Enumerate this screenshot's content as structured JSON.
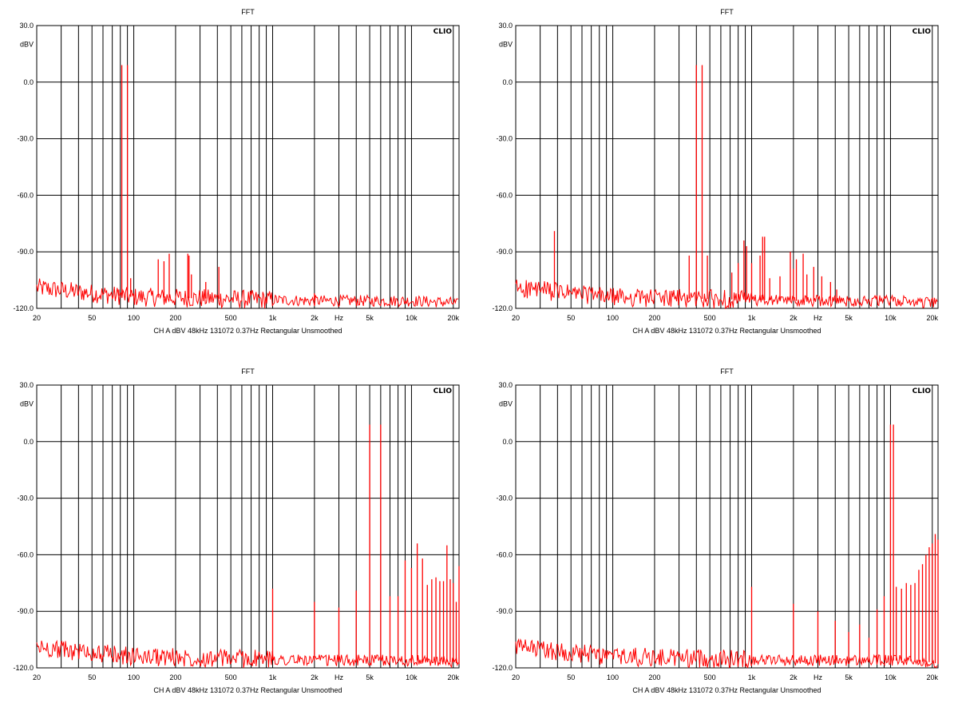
{
  "chart_data": [
    {
      "type": "line",
      "title": "FFT",
      "brand": "CLIO",
      "yunit": "dBV",
      "ylim": [
        -120,
        30
      ],
      "yticks": [
        "30.0",
        "0.0",
        "-30.0",
        "-60.0",
        "-90.0",
        "-120.0"
      ],
      "x_scale": "log",
      "xlim": [
        20,
        22000
      ],
      "xticks": [
        "20",
        "50",
        "100",
        "200",
        "500",
        "1k",
        "2k",
        "Hz",
        "5k",
        "10k",
        "20k"
      ],
      "footer": "CH A   dBV   48kHz   131072   0.37Hz   Rectangular   Unsmoothed",
      "grid": true,
      "series": [
        {
          "color": "#ff0000"
        }
      ],
      "noise": [
        [
          20,
          -109
        ],
        [
          50,
          -112
        ],
        [
          100,
          -114
        ],
        [
          500,
          -115
        ],
        [
          2000,
          -116
        ],
        [
          10000,
          -116
        ],
        [
          20000,
          -117
        ],
        [
          22000,
          -118
        ]
      ],
      "peaks": [
        [
          82,
          9
        ],
        [
          90,
          9
        ],
        [
          78,
          -110
        ],
        [
          95,
          -104
        ],
        [
          150,
          -94
        ],
        [
          165,
          -95
        ],
        [
          180,
          -91
        ],
        [
          245,
          -91
        ],
        [
          250,
          -92
        ],
        [
          260,
          -102
        ],
        [
          330,
          -106
        ],
        [
          410,
          -98
        ],
        [
          2000,
          -112
        ]
      ]
    },
    {
      "type": "line",
      "title": "FFT",
      "brand": "CLIO",
      "yunit": "dBV",
      "ylim": [
        -120,
        30
      ],
      "yticks": [
        "30.0",
        "0.0",
        "-30.0",
        "-60.0",
        "-90.0",
        "-120.0"
      ],
      "x_scale": "log",
      "xlim": [
        20,
        22000
      ],
      "xticks": [
        "20",
        "50",
        "100",
        "200",
        "500",
        "1k",
        "2k",
        "Hz",
        "5k",
        "10k",
        "20k"
      ],
      "footer": "CH A   dBV   48kHz   131072   0.37Hz   Rectangular   Unsmoothed",
      "grid": true,
      "series": [
        {
          "color": "#ff0000"
        }
      ],
      "noise": [
        [
          20,
          -109
        ],
        [
          50,
          -112
        ],
        [
          100,
          -114
        ],
        [
          500,
          -115
        ],
        [
          2000,
          -116
        ],
        [
          10000,
          -116
        ],
        [
          20000,
          -117
        ],
        [
          22000,
          -118
        ]
      ],
      "peaks": [
        [
          38,
          -79
        ],
        [
          355,
          -92
        ],
        [
          400,
          9
        ],
        [
          440,
          9
        ],
        [
          480,
          -92
        ],
        [
          720,
          -101
        ],
        [
          800,
          -96
        ],
        [
          880,
          -84
        ],
        [
          920,
          -87
        ],
        [
          1000,
          -96
        ],
        [
          1150,
          -92
        ],
        [
          1200,
          -82
        ],
        [
          1240,
          -82
        ],
        [
          1350,
          -104
        ],
        [
          1600,
          -103
        ],
        [
          1900,
          -90
        ],
        [
          2000,
          -99
        ],
        [
          2100,
          -94
        ],
        [
          2350,
          -91
        ],
        [
          2500,
          -102
        ],
        [
          2800,
          -98
        ],
        [
          3200,
          -103
        ],
        [
          3700,
          -106
        ],
        [
          4100,
          -110
        ]
      ]
    },
    {
      "type": "line",
      "title": "FFT",
      "brand": "CLIO",
      "yunit": "dBV",
      "ylim": [
        -120,
        30
      ],
      "yticks": [
        "30.0",
        "0.0",
        "-30.0",
        "-60.0",
        "-90.0",
        "-120.0"
      ],
      "x_scale": "log",
      "xlim": [
        20,
        22000
      ],
      "xticks": [
        "20",
        "50",
        "100",
        "200",
        "500",
        "1k",
        "2k",
        "Hz",
        "5k",
        "10k",
        "20k"
      ],
      "footer": "CH A   dBV   48kHz   131072   0.37Hz   Rectangular   Unsmoothed",
      "grid": true,
      "series": [
        {
          "color": "#ff0000"
        }
      ],
      "noise": [
        [
          20,
          -109
        ],
        [
          50,
          -112
        ],
        [
          100,
          -114
        ],
        [
          500,
          -115
        ],
        [
          2000,
          -116
        ],
        [
          10000,
          -116
        ],
        [
          20000,
          -117
        ],
        [
          22000,
          -118
        ]
      ],
      "peaks": [
        [
          1000,
          -78
        ],
        [
          2000,
          -85
        ],
        [
          3000,
          -88
        ],
        [
          4000,
          -79
        ],
        [
          5000,
          9
        ],
        [
          6000,
          9
        ],
        [
          7000,
          -82
        ],
        [
          8000,
          -82
        ],
        [
          9000,
          -63
        ],
        [
          10000,
          -67
        ],
        [
          11000,
          -54
        ],
        [
          12000,
          -62
        ],
        [
          13000,
          -76
        ],
        [
          14000,
          -73
        ],
        [
          15000,
          -72
        ],
        [
          16000,
          -74
        ],
        [
          17000,
          -74
        ],
        [
          18000,
          -55
        ],
        [
          19000,
          -73
        ],
        [
          20000,
          -75
        ],
        [
          21000,
          -85
        ],
        [
          22000,
          -66
        ]
      ]
    },
    {
      "type": "line",
      "title": "FFT",
      "brand": "CLIO",
      "yunit": "dBV",
      "ylim": [
        -120,
        30
      ],
      "yticks": [
        "30.0",
        "0.0",
        "-30.0",
        "-60.0",
        "-90.0",
        "-120.0"
      ],
      "x_scale": "log",
      "xlim": [
        20,
        22000
      ],
      "xticks": [
        "20",
        "50",
        "100",
        "200",
        "500",
        "1k",
        "2k",
        "Hz",
        "5k",
        "10k",
        "20k"
      ],
      "footer": "CH A   dBV   48kHz   131072   0.37Hz   Rectangular   Unsmoothed",
      "grid": true,
      "series": [
        {
          "color": "#ff0000"
        }
      ],
      "noise": [
        [
          20,
          -109
        ],
        [
          50,
          -112
        ],
        [
          100,
          -114
        ],
        [
          500,
          -115
        ],
        [
          2000,
          -116
        ],
        [
          10000,
          -116
        ],
        [
          20000,
          -117
        ],
        [
          22000,
          -118
        ]
      ],
      "peaks": [
        [
          1000,
          -77
        ],
        [
          2000,
          -86
        ],
        [
          3000,
          -90
        ],
        [
          4000,
          -95
        ],
        [
          5000,
          -101
        ],
        [
          6000,
          -97
        ],
        [
          7000,
          -104
        ],
        [
          8000,
          -89
        ],
        [
          9000,
          -82
        ],
        [
          10000,
          9
        ],
        [
          10500,
          9
        ],
        [
          11000,
          -77
        ],
        [
          12000,
          -78
        ],
        [
          13000,
          -75
        ],
        [
          14000,
          -76
        ],
        [
          15000,
          -75
        ],
        [
          16000,
          -68
        ],
        [
          17000,
          -65
        ],
        [
          18000,
          -60
        ],
        [
          19000,
          -56
        ],
        [
          20000,
          -54
        ],
        [
          21000,
          -49
        ],
        [
          22000,
          -52
        ]
      ]
    }
  ]
}
